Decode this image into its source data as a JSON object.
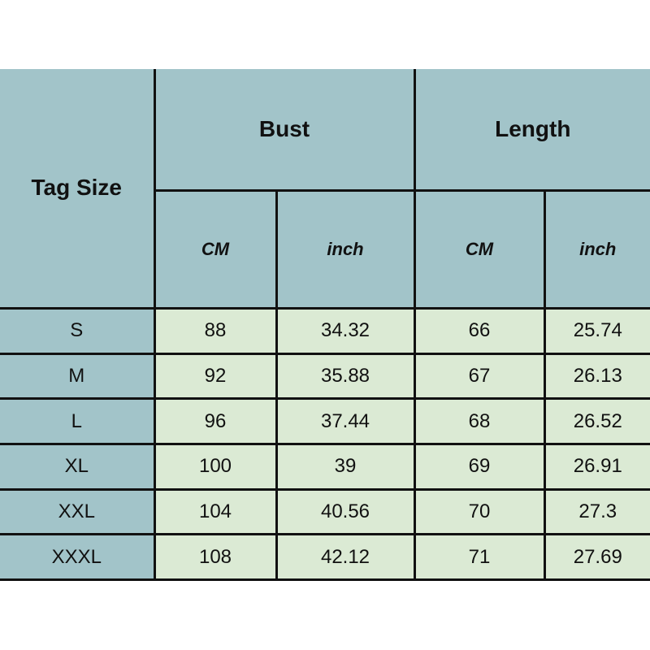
{
  "header": {
    "tag_size": "Tag Size",
    "bust": "Bust",
    "length": "Length",
    "units": [
      "CM",
      "inch",
      "CM",
      "inch"
    ]
  },
  "rows": [
    {
      "size": "S",
      "bust_cm": "88",
      "bust_in": "34.32",
      "len_cm": "66",
      "len_in": "25.74"
    },
    {
      "size": "M",
      "bust_cm": "92",
      "bust_in": "35.88",
      "len_cm": "67",
      "len_in": "26.13"
    },
    {
      "size": "L",
      "bust_cm": "96",
      "bust_in": "37.44",
      "len_cm": "68",
      "len_in": "26.52"
    },
    {
      "size": "XL",
      "bust_cm": "100",
      "bust_in": "39",
      "len_cm": "69",
      "len_in": "26.91"
    },
    {
      "size": "XXL",
      "bust_cm": "104",
      "bust_in": "40.56",
      "len_cm": "70",
      "len_in": "27.3"
    },
    {
      "size": "XXXL",
      "bust_cm": "108",
      "bust_in": "42.12",
      "len_cm": "71",
      "len_in": "27.69"
    }
  ],
  "colors": {
    "header": "#a2c4c9",
    "body": "#dbead4"
  }
}
